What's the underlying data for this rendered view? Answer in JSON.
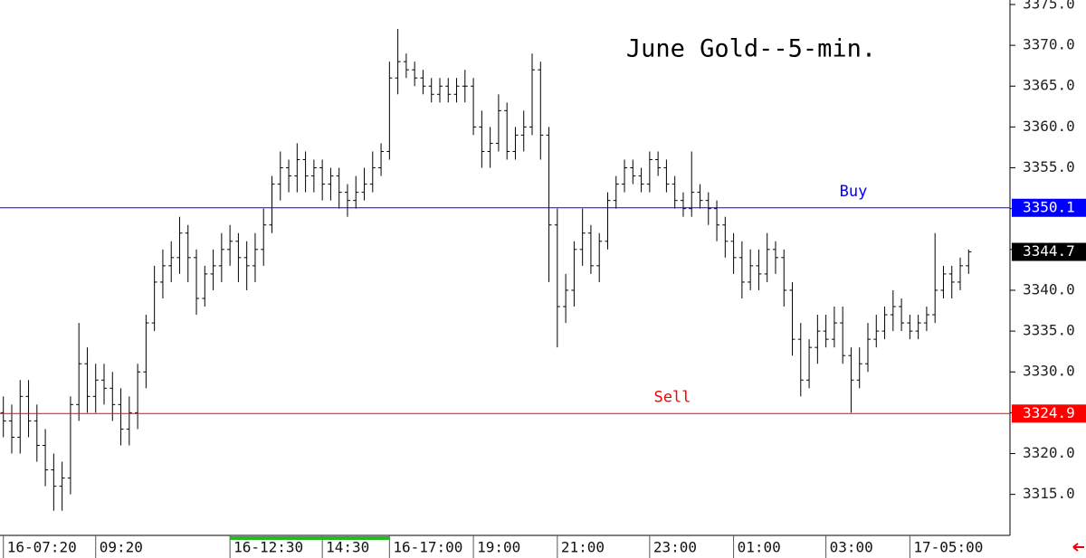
{
  "chart_data": {
    "type": "ohlc",
    "title": "June Gold--5-min.",
    "color": "#000000",
    "open": [
      3325,
      3324,
      3322,
      3327,
      3324,
      3321,
      3318,
      3316,
      3317,
      3326,
      3331,
      3327,
      3329,
      3328,
      3326,
      3323,
      3325,
      3330,
      3336,
      3341,
      3343,
      3344,
      3347,
      3344,
      3339,
      3342,
      3343,
      3345,
      3346,
      3344,
      3343,
      3345,
      3348,
      3353,
      3355,
      3354,
      3356,
      3354,
      3355,
      3353,
      3354,
      3352,
      3351,
      3352,
      3353,
      3355,
      3357,
      3366,
      3368,
      3367,
      3366,
      3365,
      3364,
      3365,
      3364,
      3365,
      3365,
      3360,
      3357,
      3358,
      3362,
      3357,
      3359,
      3360,
      3367,
      3359,
      3348,
      3338,
      3340,
      3345,
      3347,
      3343,
      3346,
      3351,
      3353,
      3355,
      3354,
      3353,
      3356,
      3355,
      3353,
      3351,
      3350,
      3352,
      3351,
      3350,
      3348,
      3346,
      3344,
      3341,
      3343,
      3342,
      3345,
      3344,
      3340,
      3334,
      3329,
      3333,
      3335,
      3334,
      3336,
      3332,
      3329,
      3331,
      3334,
      3335,
      3337,
      3338,
      3336,
      3335,
      3336,
      3337,
      3340,
      3342,
      3341,
      3343
    ],
    "high": [
      3327,
      3326,
      3329,
      3329,
      3326,
      3323,
      3320,
      3319,
      3327,
      3336,
      3333,
      3331,
      3331,
      3330,
      3328,
      3327,
      3331,
      3337,
      3343,
      3345,
      3346,
      3349,
      3348,
      3345,
      3343,
      3345,
      3347,
      3348,
      3347,
      3346,
      3347,
      3350,
      3354,
      3357,
      3356,
      3358,
      3357,
      3356,
      3356,
      3355,
      3355,
      3353,
      3354,
      3355,
      3357,
      3358,
      3368,
      3372,
      3369,
      3368,
      3367,
      3366,
      3366,
      3366,
      3366,
      3367,
      3366,
      3362,
      3360,
      3364,
      3363,
      3360,
      3362,
      3369,
      3368,
      3360,
      3350,
      3342,
      3346,
      3350,
      3348,
      3347,
      3352,
      3354,
      3356,
      3356,
      3355,
      3357,
      3357,
      3356,
      3354,
      3352,
      3357,
      3353,
      3352,
      3351,
      3349,
      3347,
      3346,
      3345,
      3345,
      3347,
      3346,
      3345,
      3341,
      3336,
      3334,
      3337,
      3337,
      3338,
      3338,
      3333,
      3333,
      3336,
      3337,
      3338,
      3340,
      3339,
      3337,
      3337,
      3338,
      3347,
      3343,
      3343,
      3344,
      3345
    ],
    "low": [
      3322,
      3320,
      3320,
      3322,
      3319,
      3316,
      3313,
      3313,
      3315,
      3324,
      3325,
      3325,
      3326,
      3324,
      3321,
      3321,
      3323,
      3328,
      3335,
      3339,
      3341,
      3342,
      3341,
      3337,
      3338,
      3340,
      3341,
      3343,
      3341,
      3340,
      3341,
      3343,
      3347,
      3351,
      3352,
      3352,
      3352,
      3352,
      3351,
      3351,
      3350,
      3349,
      3350,
      3351,
      3352,
      3354,
      3356,
      3364,
      3366,
      3365,
      3364,
      3363,
      3363,
      3363,
      3363,
      3363,
      3359,
      3355,
      3355,
      3357,
      3356,
      3356,
      3357,
      3359,
      3356,
      3341,
      3333,
      3336,
      3338,
      3343,
      3342,
      3341,
      3345,
      3350,
      3352,
      3353,
      3352,
      3352,
      3354,
      3352,
      3350,
      3349,
      3349,
      3350,
      3348,
      3346,
      3344,
      3342,
      3339,
      3340,
      3340,
      3341,
      3342,
      3338,
      3332,
      3327,
      3328,
      3331,
      3333,
      3333,
      3331,
      3325,
      3328,
      3330,
      3333,
      3334,
      3335,
      3335,
      3334,
      3334,
      3335,
      3336,
      3339,
      3339,
      3340,
      3342
    ],
    "close": [
      3324,
      3322,
      3327,
      3324,
      3321,
      3318,
      3316,
      3317,
      3326,
      3331,
      3327,
      3329,
      3328,
      3326,
      3323,
      3325,
      3330,
      3336,
      3341,
      3343,
      3344,
      3347,
      3344,
      3339,
      3342,
      3343,
      3345,
      3346,
      3344,
      3343,
      3345,
      3348,
      3353,
      3355,
      3354,
      3356,
      3354,
      3355,
      3353,
      3354,
      3352,
      3351,
      3352,
      3353,
      3355,
      3357,
      3366,
      3368,
      3367,
      3366,
      3365,
      3364,
      3365,
      3364,
      3365,
      3365,
      3360,
      3357,
      3358,
      3362,
      3357,
      3359,
      3360,
      3367,
      3359,
      3348,
      3338,
      3340,
      3345,
      3347,
      3343,
      3346,
      3351,
      3353,
      3355,
      3354,
      3353,
      3356,
      3355,
      3353,
      3351,
      3350,
      3352,
      3351,
      3350,
      3348,
      3346,
      3344,
      3341,
      3343,
      3342,
      3345,
      3344,
      3340,
      3334,
      3329,
      3333,
      3335,
      3334,
      3336,
      3332,
      3329,
      3331,
      3334,
      3335,
      3337,
      3338,
      3336,
      3335,
      3336,
      3337,
      3340,
      3342,
      3341,
      3343,
      3344.7
    ],
    "xlim": [
      -0.4,
      115.4
    ],
    "xticks": [
      {
        "value": 0,
        "label": "16-07:20"
      },
      {
        "value": 11,
        "label": "09:20"
      },
      {
        "value": 27,
        "label": "16-12:30"
      },
      {
        "value": 38,
        "label": "14:30"
      },
      {
        "value": 46,
        "label": "16-17:00"
      },
      {
        "value": 56,
        "label": "19:00"
      },
      {
        "value": 66,
        "label": "21:00"
      },
      {
        "value": 77,
        "label": "23:00"
      },
      {
        "value": 87,
        "label": "01:00"
      },
      {
        "value": 98,
        "label": "03:00"
      },
      {
        "value": 108,
        "label": "17-05:00"
      }
    ],
    "ylim": [
      3310.2,
      3375.55
    ],
    "yticks": [
      {
        "value": 3315,
        "label": "3315.0"
      },
      {
        "value": 3320,
        "label": "3320.0"
      },
      {
        "value": 3325,
        "label": "3325.0"
      },
      {
        "value": 3330,
        "label": "3330.0"
      },
      {
        "value": 3335,
        "label": "3335.0"
      },
      {
        "value": 3340,
        "label": "3340.0"
      },
      {
        "value": 3345,
        "label": "3345.0"
      },
      {
        "value": 3350,
        "label": "3350.0"
      },
      {
        "value": 3355,
        "label": "3355.0"
      },
      {
        "value": 3360,
        "label": "3360.0"
      },
      {
        "value": 3365,
        "label": "3365.0"
      },
      {
        "value": 3370,
        "label": "3370.0"
      },
      {
        "value": 3375,
        "label": "3375.0"
      }
    ],
    "levels": [
      {
        "name": "Buy",
        "value": 3350.1,
        "color": "#0000ff"
      },
      {
        "name": "Sell",
        "value": 3324.9,
        "color": "#ff0000"
      }
    ]
  }
}
